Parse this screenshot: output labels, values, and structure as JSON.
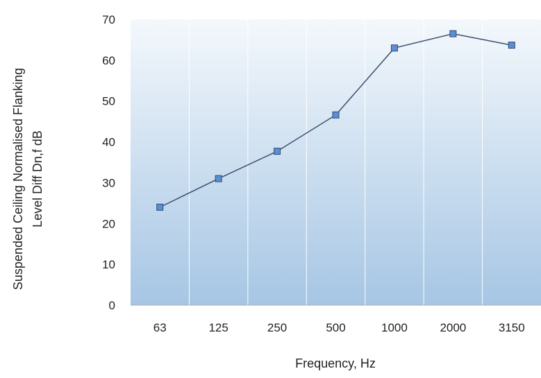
{
  "chart_data": {
    "type": "line",
    "title": "",
    "xlabel": "Frequency, Hz",
    "ylabel_line1": "Suspended Ceiling Normalised Flanking",
    "ylabel_line2": "Level Diff Dn,f dB",
    "categories": [
      "63",
      "125",
      "250",
      "500",
      "1000",
      "2000",
      "3150"
    ],
    "values": [
      24,
      31,
      37.7,
      46.6,
      63,
      66.5,
      63.7
    ],
    "ylim": [
      0,
      70
    ],
    "yticks": [
      "0",
      "10",
      "20",
      "30",
      "40",
      "50",
      "60",
      "70"
    ],
    "grid": "vertical",
    "legend": "none",
    "colors": {
      "line": "#3b4f6e",
      "marker_fill": "#5b8fd1",
      "marker_stroke": "#2e4a78",
      "plot_bg_top": "#f4f8fc",
      "plot_bg_bottom": "#a6c6e4",
      "grid": "#ffffff",
      "axis": "#b0b0b0"
    }
  }
}
